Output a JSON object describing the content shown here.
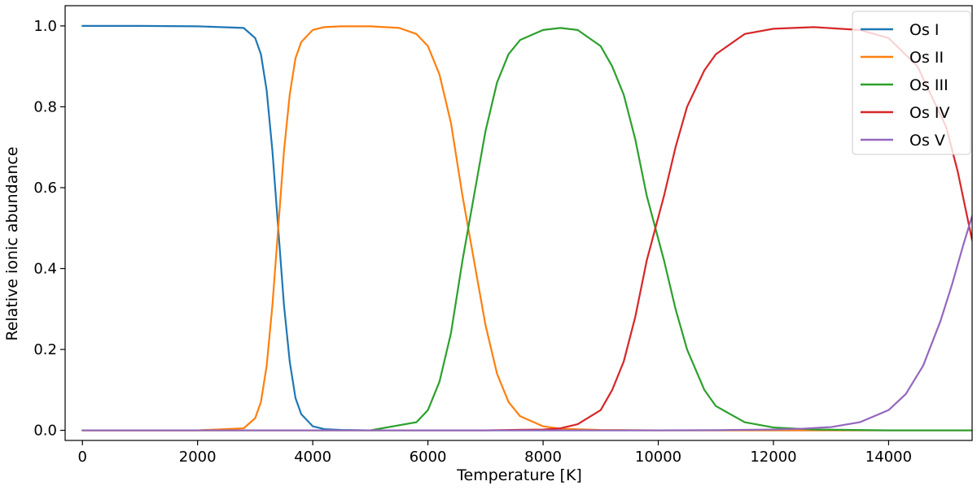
{
  "chart_data": {
    "type": "line",
    "title": "",
    "xlabel": "Temperature [K]",
    "ylabel": "Relative ionic abundance",
    "xlim": [
      -300,
      15450
    ],
    "ylim": [
      -0.025,
      1.05
    ],
    "xticks": [
      0,
      2000,
      4000,
      6000,
      8000,
      10000,
      12000,
      14000
    ],
    "xtick_labels": [
      "0",
      "2000",
      "4000",
      "6000",
      "8000",
      "10000",
      "12000",
      "14000"
    ],
    "yticks": [
      0.0,
      0.2,
      0.4,
      0.6,
      0.8,
      1.0
    ],
    "ytick_labels": [
      "0.0",
      "0.2",
      "0.4",
      "0.6",
      "0.8",
      "1.0"
    ],
    "grid": false,
    "legend_position": "top-right",
    "series": [
      {
        "name": "Os I",
        "color": "#1f77b4",
        "x": [
          0,
          1000,
          2000,
          2800,
          3000,
          3100,
          3200,
          3300,
          3400,
          3500,
          3600,
          3700,
          3800,
          4000,
          4200,
          4500,
          5000,
          6000,
          8000,
          10000,
          12000,
          14000,
          15450
        ],
        "y": [
          1.0,
          1.0,
          0.999,
          0.995,
          0.97,
          0.93,
          0.84,
          0.69,
          0.5,
          0.31,
          0.17,
          0.08,
          0.04,
          0.01,
          0.003,
          0.001,
          0.0,
          0.0,
          0.0,
          0.0,
          0.0,
          0.0,
          0.0
        ]
      },
      {
        "name": "Os II",
        "color": "#ff7f0e",
        "x": [
          0,
          2000,
          2800,
          3000,
          3100,
          3200,
          3300,
          3400,
          3500,
          3600,
          3700,
          3800,
          4000,
          4200,
          4500,
          5000,
          5500,
          5800,
          6000,
          6200,
          6400,
          6600,
          6700,
          6800,
          7000,
          7200,
          7400,
          7600,
          8000,
          8300,
          9000,
          10000,
          12000,
          14000,
          15450
        ],
        "y": [
          0.0,
          0.0,
          0.005,
          0.03,
          0.07,
          0.16,
          0.31,
          0.5,
          0.69,
          0.83,
          0.92,
          0.96,
          0.99,
          0.997,
          0.999,
          0.999,
          0.995,
          0.98,
          0.95,
          0.88,
          0.76,
          0.58,
          0.5,
          0.42,
          0.26,
          0.14,
          0.07,
          0.035,
          0.01,
          0.004,
          0.001,
          0.0,
          0.0,
          0.0,
          0.0
        ]
      },
      {
        "name": "Os III",
        "color": "#2ca02c",
        "x": [
          0,
          5000,
          5800,
          6000,
          6200,
          6400,
          6600,
          6700,
          6800,
          7000,
          7200,
          7400,
          7600,
          8000,
          8300,
          8600,
          9000,
          9200,
          9400,
          9600,
          9800,
          9950,
          10100,
          10300,
          10500,
          10800,
          11000,
          11500,
          12000,
          12700,
          14000,
          15450
        ],
        "y": [
          0.0,
          0.0,
          0.02,
          0.05,
          0.12,
          0.24,
          0.42,
          0.5,
          0.58,
          0.74,
          0.86,
          0.93,
          0.965,
          0.99,
          0.995,
          0.99,
          0.95,
          0.9,
          0.83,
          0.72,
          0.58,
          0.5,
          0.42,
          0.3,
          0.2,
          0.1,
          0.06,
          0.02,
          0.007,
          0.002,
          0.0,
          0.0
        ]
      },
      {
        "name": "Os IV",
        "color": "#d62728",
        "x": [
          0,
          7000,
          8000,
          8300,
          8600,
          9000,
          9200,
          9400,
          9600,
          9800,
          9950,
          10100,
          10300,
          10500,
          10800,
          11000,
          11500,
          12000,
          12700,
          13500,
          14000,
          14500,
          15000,
          15200,
          15450
        ],
        "y": [
          0.0,
          0.0,
          0.002,
          0.005,
          0.015,
          0.05,
          0.1,
          0.17,
          0.28,
          0.42,
          0.5,
          0.58,
          0.7,
          0.8,
          0.89,
          0.93,
          0.98,
          0.993,
          0.997,
          0.99,
          0.97,
          0.9,
          0.75,
          0.64,
          0.47
        ]
      },
      {
        "name": "Os V",
        "color": "#9467bd",
        "x": [
          0,
          10000,
          11000,
          12000,
          12500,
          13000,
          13500,
          14000,
          14300,
          14600,
          14900,
          15100,
          15300,
          15450
        ],
        "y": [
          0.0,
          0.0,
          0.0005,
          0.002,
          0.004,
          0.008,
          0.02,
          0.05,
          0.09,
          0.16,
          0.27,
          0.36,
          0.46,
          0.53
        ]
      }
    ]
  }
}
